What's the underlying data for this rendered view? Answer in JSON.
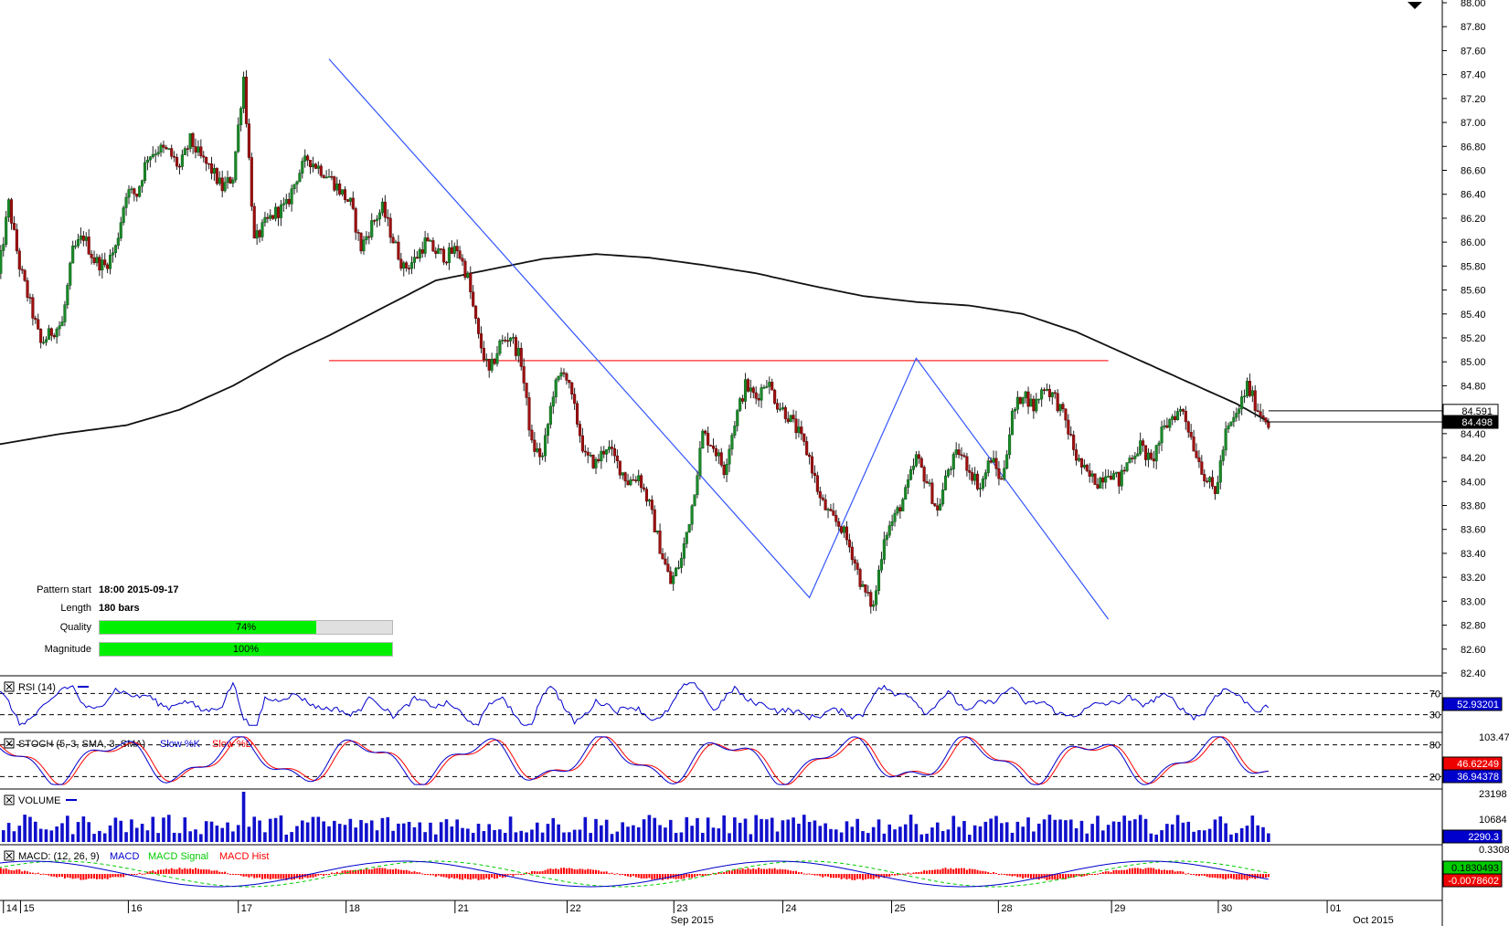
{
  "chart_data": {
    "type": "candlestick",
    "instrument_view": "price candles with 200-period moving average and pattern overlay",
    "price_axis": {
      "ticks": [
        "88.00",
        "87.80",
        "87.60",
        "87.40",
        "87.20",
        "87.00",
        "86.80",
        "86.60",
        "86.40",
        "86.20",
        "86.00",
        "85.80",
        "85.60",
        "85.40",
        "85.20",
        "85.00",
        "84.80",
        "84.60",
        "84.40",
        "84.20",
        "84.00",
        "83.80",
        "83.60",
        "83.40",
        "83.20",
        "83.00",
        "82.80",
        "82.60",
        "82.40"
      ],
      "range": [
        82.4,
        88.0
      ]
    },
    "price_tags": [
      {
        "value": "84.591",
        "price": 84.591,
        "style": "outline"
      },
      {
        "value": "84.498",
        "price": 84.498,
        "style": "filled-black"
      }
    ],
    "pattern": {
      "start_label": "Pattern start",
      "start_value": "18:00 2015-09-17",
      "length_label": "Length",
      "length_value": "180 bars",
      "quality_label": "Quality",
      "quality_value": "74%",
      "quality_fraction": 0.74,
      "magnitude_label": "Magnitude",
      "magnitude_value": "100%",
      "magnitude_fraction": 1.0,
      "resistance_level": 85.01,
      "zigzag": [
        {
          "bar": 0,
          "price": 87.53
        },
        {
          "bar": 45,
          "price": 83.03
        },
        {
          "bar": 55,
          "price": 85.03
        },
        {
          "bar": 73,
          "price": 82.85
        }
      ]
    },
    "x_axis": {
      "day_labels": [
        {
          "label": "14",
          "bar": -30.5
        },
        {
          "label": "15",
          "bar": -28.9
        },
        {
          "label": "16",
          "bar": -18.8
        },
        {
          "label": "17",
          "bar": -8.5
        },
        {
          "label": "18",
          "bar": 1.6
        },
        {
          "label": "21",
          "bar": 11.8
        },
        {
          "label": "22",
          "bar": 22.3
        },
        {
          "label": "23",
          "bar": 32.3
        },
        {
          "label": "24",
          "bar": 42.5
        },
        {
          "label": "25",
          "bar": 52.7
        },
        {
          "label": "28",
          "bar": 62.7
        },
        {
          "label": "29",
          "bar": 73.3
        },
        {
          "label": "30",
          "bar": 83.3
        },
        {
          "label": "01",
          "bar": 93.5
        }
      ],
      "month_labels": [
        {
          "label": "Sep 2015",
          "bar": 32.0
        },
        {
          "label": "Oct 2015",
          "bar": 95.9
        }
      ]
    },
    "close_path": [
      {
        "bar": -31,
        "price": 85.72
      },
      {
        "bar": -30,
        "price": 86.32
      },
      {
        "bar": -29,
        "price": 85.8
      },
      {
        "bar": -28,
        "price": 85.48
      },
      {
        "bar": -27,
        "price": 85.15
      },
      {
        "bar": -26,
        "price": 85.25
      },
      {
        "bar": -25,
        "price": 85.32
      },
      {
        "bar": -24,
        "price": 85.92
      },
      {
        "bar": -23,
        "price": 86.05
      },
      {
        "bar": -22,
        "price": 85.85
      },
      {
        "bar": -21,
        "price": 85.8
      },
      {
        "bar": -20,
        "price": 85.95
      },
      {
        "bar": -19,
        "price": 86.42
      },
      {
        "bar": -18,
        "price": 86.4
      },
      {
        "bar": -17,
        "price": 86.72
      },
      {
        "bar": -16,
        "price": 86.78
      },
      {
        "bar": -15,
        "price": 86.75
      },
      {
        "bar": -14,
        "price": 86.62
      },
      {
        "bar": -13,
        "price": 86.85
      },
      {
        "bar": -12,
        "price": 86.7
      },
      {
        "bar": -11,
        "price": 86.6
      },
      {
        "bar": -10,
        "price": 86.45
      },
      {
        "bar": -9,
        "price": 86.55
      },
      {
        "bar": -8,
        "price": 87.38
      },
      {
        "bar": -7,
        "price": 86.0
      },
      {
        "bar": -6,
        "price": 86.15
      },
      {
        "bar": -5,
        "price": 86.25
      },
      {
        "bar": -4,
        "price": 86.3
      },
      {
        "bar": -3,
        "price": 86.55
      },
      {
        "bar": -2,
        "price": 86.7
      },
      {
        "bar": 0,
        "price": 86.55
      },
      {
        "bar": 2,
        "price": 86.32
      },
      {
        "bar": 3,
        "price": 85.95
      },
      {
        "bar": 4,
        "price": 86.15
      },
      {
        "bar": 5,
        "price": 86.28
      },
      {
        "bar": 6,
        "price": 86.02
      },
      {
        "bar": 7,
        "price": 85.78
      },
      {
        "bar": 8,
        "price": 85.85
      },
      {
        "bar": 9,
        "price": 86.0
      },
      {
        "bar": 10,
        "price": 85.92
      },
      {
        "bar": 11,
        "price": 85.88
      },
      {
        "bar": 12,
        "price": 85.95
      },
      {
        "bar": 13,
        "price": 85.7
      },
      {
        "bar": 14,
        "price": 85.2
      },
      {
        "bar": 15,
        "price": 84.9
      },
      {
        "bar": 16,
        "price": 85.15
      },
      {
        "bar": 17,
        "price": 85.22
      },
      {
        "bar": 18,
        "price": 85.0
      },
      {
        "bar": 19,
        "price": 84.3
      },
      {
        "bar": 20,
        "price": 84.2
      },
      {
        "bar": 21,
        "price": 84.75
      },
      {
        "bar": 22,
        "price": 84.95
      },
      {
        "bar": 23,
        "price": 84.6
      },
      {
        "bar": 24,
        "price": 84.2
      },
      {
        "bar": 25,
        "price": 84.15
      },
      {
        "bar": 26,
        "price": 84.3
      },
      {
        "bar": 27,
        "price": 84.15
      },
      {
        "bar": 28,
        "price": 84.0
      },
      {
        "bar": 29,
        "price": 84.05
      },
      {
        "bar": 30,
        "price": 83.8
      },
      {
        "bar": 31,
        "price": 83.45
      },
      {
        "bar": 32,
        "price": 83.15
      },
      {
        "bar": 33,
        "price": 83.35
      },
      {
        "bar": 34,
        "price": 83.8
      },
      {
        "bar": 35,
        "price": 84.4
      },
      {
        "bar": 36,
        "price": 84.3
      },
      {
        "bar": 37,
        "price": 84.1
      },
      {
        "bar": 38,
        "price": 84.5
      },
      {
        "bar": 39,
        "price": 84.8
      },
      {
        "bar": 40,
        "price": 84.7
      },
      {
        "bar": 41,
        "price": 84.85
      },
      {
        "bar": 42,
        "price": 84.65
      },
      {
        "bar": 43,
        "price": 84.55
      },
      {
        "bar": 44,
        "price": 84.4
      },
      {
        "bar": 45,
        "price": 84.2
      },
      {
        "bar": 46,
        "price": 83.85
      },
      {
        "bar": 47,
        "price": 83.7
      },
      {
        "bar": 48,
        "price": 83.62
      },
      {
        "bar": 49,
        "price": 83.4
      },
      {
        "bar": 50,
        "price": 83.1
      },
      {
        "bar": 51,
        "price": 82.95
      },
      {
        "bar": 52,
        "price": 83.55
      },
      {
        "bar": 53,
        "price": 83.7
      },
      {
        "bar": 54,
        "price": 83.9
      },
      {
        "bar": 55,
        "price": 84.2
      },
      {
        "bar": 56,
        "price": 84.0
      },
      {
        "bar": 57,
        "price": 83.75
      },
      {
        "bar": 58,
        "price": 84.1
      },
      {
        "bar": 59,
        "price": 84.25
      },
      {
        "bar": 60,
        "price": 84.1
      },
      {
        "bar": 61,
        "price": 83.95
      },
      {
        "bar": 62,
        "price": 84.2
      },
      {
        "bar": 63,
        "price": 84.0
      },
      {
        "bar": 64,
        "price": 84.55
      },
      {
        "bar": 65,
        "price": 84.75
      },
      {
        "bar": 66,
        "price": 84.62
      },
      {
        "bar": 67,
        "price": 84.8
      },
      {
        "bar": 68,
        "price": 84.7
      },
      {
        "bar": 69,
        "price": 84.5
      },
      {
        "bar": 70,
        "price": 84.2
      },
      {
        "bar": 71,
        "price": 84.05
      },
      {
        "bar": 72,
        "price": 84.0
      },
      {
        "bar": 73,
        "price": 84.1
      },
      {
        "bar": 74,
        "price": 84.0
      },
      {
        "bar": 75,
        "price": 84.2
      },
      {
        "bar": 76,
        "price": 84.3
      },
      {
        "bar": 77,
        "price": 84.15
      },
      {
        "bar": 78,
        "price": 84.4
      },
      {
        "bar": 79,
        "price": 84.55
      },
      {
        "bar": 80,
        "price": 84.6
      },
      {
        "bar": 81,
        "price": 84.3
      },
      {
        "bar": 82,
        "price": 84.05
      },
      {
        "bar": 83,
        "price": 83.9
      },
      {
        "bar": 84,
        "price": 84.4
      },
      {
        "bar": 85,
        "price": 84.55
      },
      {
        "bar": 86,
        "price": 84.8
      },
      {
        "bar": 87,
        "price": 84.6
      },
      {
        "bar": 88,
        "price": 84.5
      }
    ],
    "moving_average": {
      "points": [
        {
          "bar": -31,
          "price": 84.31
        },
        {
          "bar": -25,
          "price": 84.4
        },
        {
          "bar": -19,
          "price": 84.47
        },
        {
          "bar": -14,
          "price": 84.6
        },
        {
          "bar": -9,
          "price": 84.8
        },
        {
          "bar": -4,
          "price": 85.05
        },
        {
          "bar": 0,
          "price": 85.22
        },
        {
          "bar": 5,
          "price": 85.45
        },
        {
          "bar": 10,
          "price": 85.68
        },
        {
          "bar": 15,
          "price": 85.77
        },
        {
          "bar": 20,
          "price": 85.86
        },
        {
          "bar": 25,
          "price": 85.9
        },
        {
          "bar": 30,
          "price": 85.87
        },
        {
          "bar": 35,
          "price": 85.81
        },
        {
          "bar": 40,
          "price": 85.74
        },
        {
          "bar": 45,
          "price": 85.64
        },
        {
          "bar": 50,
          "price": 85.55
        },
        {
          "bar": 55,
          "price": 85.5
        },
        {
          "bar": 60,
          "price": 85.47
        },
        {
          "bar": 65,
          "price": 85.4
        },
        {
          "bar": 70,
          "price": 85.25
        },
        {
          "bar": 75,
          "price": 85.05
        },
        {
          "bar": 80,
          "price": 84.85
        },
        {
          "bar": 85,
          "price": 84.65
        },
        {
          "bar": 88,
          "price": 84.5
        }
      ]
    },
    "indicators": [
      {
        "name": "RSI",
        "title": "RSI (14)",
        "levels": [
          "70",
          "30"
        ],
        "level_values": [
          70,
          30
        ],
        "current": "52.93201",
        "range": [
          0,
          100
        ],
        "line_color": "#0000cc"
      },
      {
        "name": "STOCH",
        "title": "STOCH (5, 3, SMA, 3, SMA)",
        "legend": [
          "Slow %K",
          "Slow %D"
        ],
        "legend_colors": [
          "#0000cc",
          "#ff0000"
        ],
        "levels": [
          "80",
          "20"
        ],
        "level_values": [
          80,
          20
        ],
        "top_label": "103.47",
        "current_k": "46.62249",
        "current_d": "36.94378",
        "range": [
          0,
          100
        ]
      },
      {
        "name": "VOLUME",
        "title": "VOLUME",
        "ticks": [
          "23198",
          "10684"
        ],
        "current": "2290.3",
        "line_color": "#0000cc"
      },
      {
        "name": "MACD",
        "title": "MACD: (12, 26, 9)",
        "legend": [
          "MACD",
          "MACD Signal",
          "MACD Hist"
        ],
        "legend_colors": [
          "#0000cc",
          "#00cc00",
          "#ff0000"
        ],
        "top_label": "0.3308254",
        "current_macd": "0.1830493",
        "current_hist": "-0.0078602"
      }
    ]
  }
}
